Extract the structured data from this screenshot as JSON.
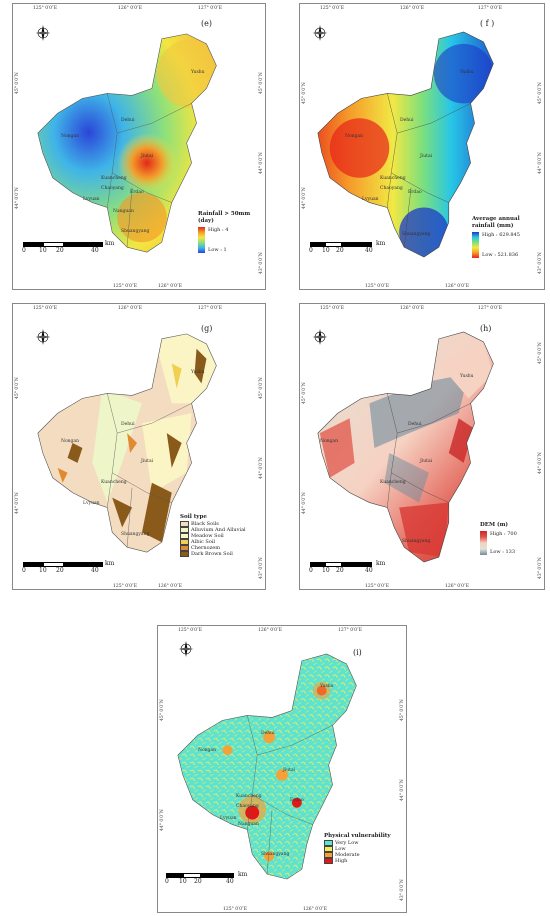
{
  "panels": [
    {
      "id": "e",
      "label": "(e)",
      "coords_top": [
        "125° 0′0″E",
        "126° 0′0″E",
        "127° 0′0″E"
      ],
      "coords_bottom": [
        "125° 0′0″E",
        "126° 0′0″E"
      ],
      "coords_right": [
        "45° 0′0″N",
        "44° 0′0″N",
        "43° 0′0″N"
      ],
      "coords_left": [
        "45° 0′0″N",
        "44° 0′0″N"
      ],
      "legend": {
        "title": "Rainfall > 50mm (day)",
        "high": "High : 4",
        "low": "Low : 1"
      },
      "place_names": [
        "Yushu",
        "Nongan",
        "Dehui",
        "Jiutai",
        "Kuancheng",
        "Chaoyang",
        "Lvyuan",
        "Erdao",
        "Nanguan",
        "Shuangyang"
      ],
      "scalebar": {
        "unit": "km",
        "ticks": [
          "0",
          "10",
          "20",
          "40"
        ]
      }
    },
    {
      "id": "f",
      "label": "( f )",
      "coords_top": [
        "125° 0′0″E",
        "126° 0′0″E",
        "127° 0′0″E"
      ],
      "coords_bottom": [
        "125° 0′0″E",
        "126° 0′0″E"
      ],
      "coords_right": [
        "45° 0′0″N",
        "44° 0′0″N",
        "43° 0′0″N"
      ],
      "coords_left": [
        "45° 0′0″N",
        "44° 0′0″N"
      ],
      "legend": {
        "title": "Average annual rainfall (mm)",
        "high": "High : 629.845",
        "low": "Low : 521.836"
      },
      "place_names": [
        "Yushu",
        "Nongan",
        "Dehui",
        "Jiutai",
        "Kuancheng",
        "Chaoyang",
        "Lvyuan",
        "Erdao",
        "Shuangyang"
      ],
      "scalebar": {
        "unit": "km",
        "ticks": [
          "0",
          "10",
          "20",
          "40"
        ]
      }
    },
    {
      "id": "g",
      "label": "(g)",
      "coords_top": [
        "125° 0′0″E",
        "126° 0′0″E",
        "127° 0′0″E"
      ],
      "coords_bottom": [
        "125° 0′0″E",
        "126° 0′0″E"
      ],
      "coords_right": [
        "45° 0′0″N",
        "44° 0′0″N",
        "43° 0′0″N"
      ],
      "coords_left": [
        "45° 0′0″N",
        "44° 0′0″N"
      ],
      "legend": {
        "title": "Soil type",
        "items": [
          {
            "label": "Black Soils",
            "color": "#f3dcc0"
          },
          {
            "label": "Alluvium And Alluvial",
            "color": "#eef5c8"
          },
          {
            "label": "Meadow Soil",
            "color": "#fbf4c4"
          },
          {
            "label": "Albic Soil",
            "color": "#f0d050"
          },
          {
            "label": "Chernozem",
            "color": "#e08a32"
          },
          {
            "label": "Dark Brown Soil",
            "color": "#8a5a1a"
          }
        ]
      },
      "place_names": [
        "Yushu",
        "Nongan",
        "Dehui",
        "Jiutai",
        "Kuancheng",
        "Lvyuan",
        "Shuangyang"
      ],
      "scalebar": {
        "unit": "km",
        "ticks": [
          "0",
          "10",
          "20",
          "40"
        ]
      }
    },
    {
      "id": "h",
      "label": "(h)",
      "coords_top": [
        "125° 0′0″E",
        "126° 0′0″E",
        "127° 0′0″E"
      ],
      "coords_bottom": [
        "125° 0′0″E",
        "126° 0′0″E"
      ],
      "coords_right": [
        "45° 0′0″N",
        "44° 0′0″N",
        "43° 0′0″N"
      ],
      "coords_left": [
        "45° 0′0″N",
        "44° 0′0″N"
      ],
      "legend": {
        "title": "DEM (m)",
        "high": "High : 700",
        "low": "Low : 133"
      },
      "place_names": [
        "Yushu",
        "Nongan",
        "Dehui",
        "Jiutai",
        "Kuancheng",
        "Shuangyang"
      ],
      "scalebar": {
        "unit": "km",
        "ticks": [
          "0",
          "10",
          "20",
          "40"
        ]
      }
    },
    {
      "id": "i",
      "label": "(i)",
      "coords_top": [
        "125° 0′0″E",
        "126° 0′0″E",
        "127° 0′0″E"
      ],
      "coords_bottom": [
        "125° 0′0″E",
        "126° 0′0″E"
      ],
      "coords_right": [
        "45° 0′0″N",
        "44° 0′0″N",
        "43° 0′0″N"
      ],
      "coords_left": [
        "45° 0′0″N",
        "44° 0′0″N"
      ],
      "legend": {
        "title": "Physical vulnerability",
        "items": [
          {
            "label": "Very Low",
            "color": "#5ee3d0"
          },
          {
            "label": "Low",
            "color": "#f2ec5a"
          },
          {
            "label": "Moderate",
            "color": "#f3a23a"
          },
          {
            "label": "High",
            "color": "#e21818"
          }
        ]
      },
      "place_names": [
        "Yushu",
        "Nongan",
        "Dehui",
        "Jiutai",
        "Kuancheng",
        "Chaoyang",
        "Lvyuan",
        "Erdao",
        "Nanguan",
        "Shuangyang"
      ],
      "scalebar": {
        "unit": "km",
        "ticks": [
          "0",
          "10",
          "20",
          "40"
        ]
      }
    }
  ],
  "north_arrow": {
    "n": "N",
    "s": "S",
    "e": "E",
    "w": "W"
  },
  "colors": {
    "rainfall_days": [
      "#2b45d8",
      "#3fb4e8",
      "#8ee07a",
      "#f3e640",
      "#f39a2a",
      "#e22a1a"
    ],
    "annual_rainfall": [
      "#e7241a",
      "#f59a2a",
      "#f2e844",
      "#7fe07a",
      "#27c6e6",
      "#1d38c8"
    ],
    "dem": [
      "#6f8c9e",
      "#dfe3d5",
      "#f6d2c3",
      "#e0554a",
      "#c92828"
    ]
  }
}
